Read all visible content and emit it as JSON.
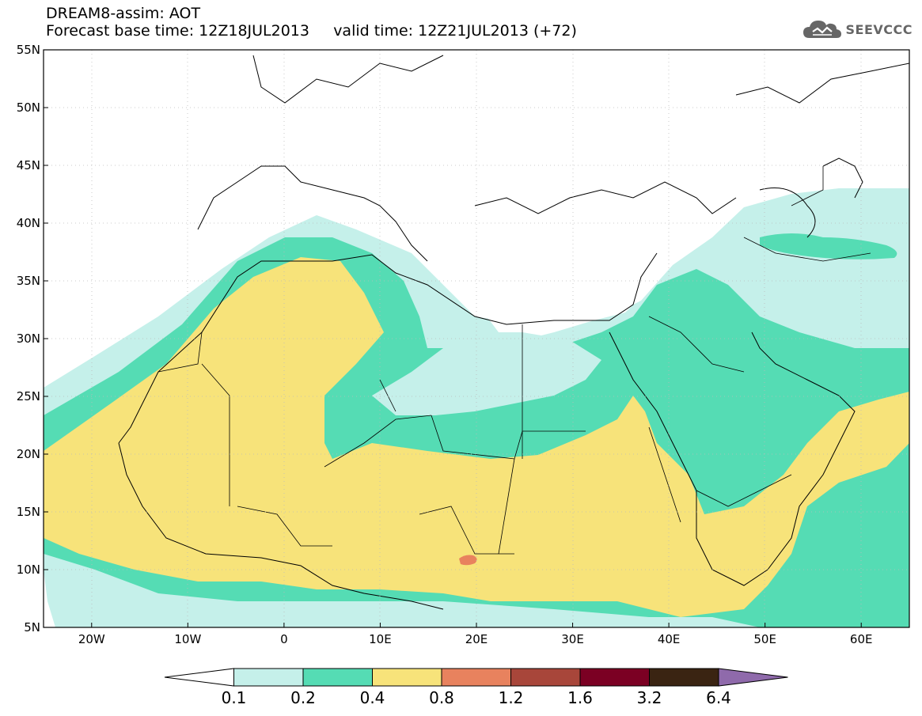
{
  "header": {
    "title": "DREAM8-assim: AOT",
    "base_time_label": "Forecast base time:",
    "base_time": "12Z18JUL2013",
    "valid_time_label": "valid time:",
    "valid_time": "12Z21JUL2013 (+72)"
  },
  "logo": {
    "text": "SEEVCCC",
    "icon": "cloud-icon"
  },
  "map": {
    "lat_range": [
      5,
      55
    ],
    "lon_range": [
      -25,
      65
    ],
    "lat_ticks": [
      "55N",
      "50N",
      "45N",
      "40N",
      "35N",
      "30N",
      "25N",
      "20N",
      "15N",
      "10N",
      "5N"
    ],
    "lon_ticks": [
      "20W",
      "10W",
      "0",
      "10E",
      "20E",
      "30E",
      "40E",
      "50E",
      "60E"
    ],
    "colors": {
      "ocean_land": "#ffffff",
      "level_1": "#c5f0ea",
      "level_2": "#55dcb4",
      "level_3": "#f7e37a",
      "level_4": "#e8825e"
    }
  },
  "colorbar": {
    "labels": [
      "0.1",
      "0.2",
      "0.4",
      "0.8",
      "1.2",
      "1.6",
      "3.2",
      "6.4"
    ],
    "colors": [
      "#ffffff",
      "#c5f0ea",
      "#55dcb4",
      "#f7e37a",
      "#e8825e",
      "#a8463a",
      "#7b0023",
      "#3a2412",
      "#8f6aab"
    ]
  }
}
